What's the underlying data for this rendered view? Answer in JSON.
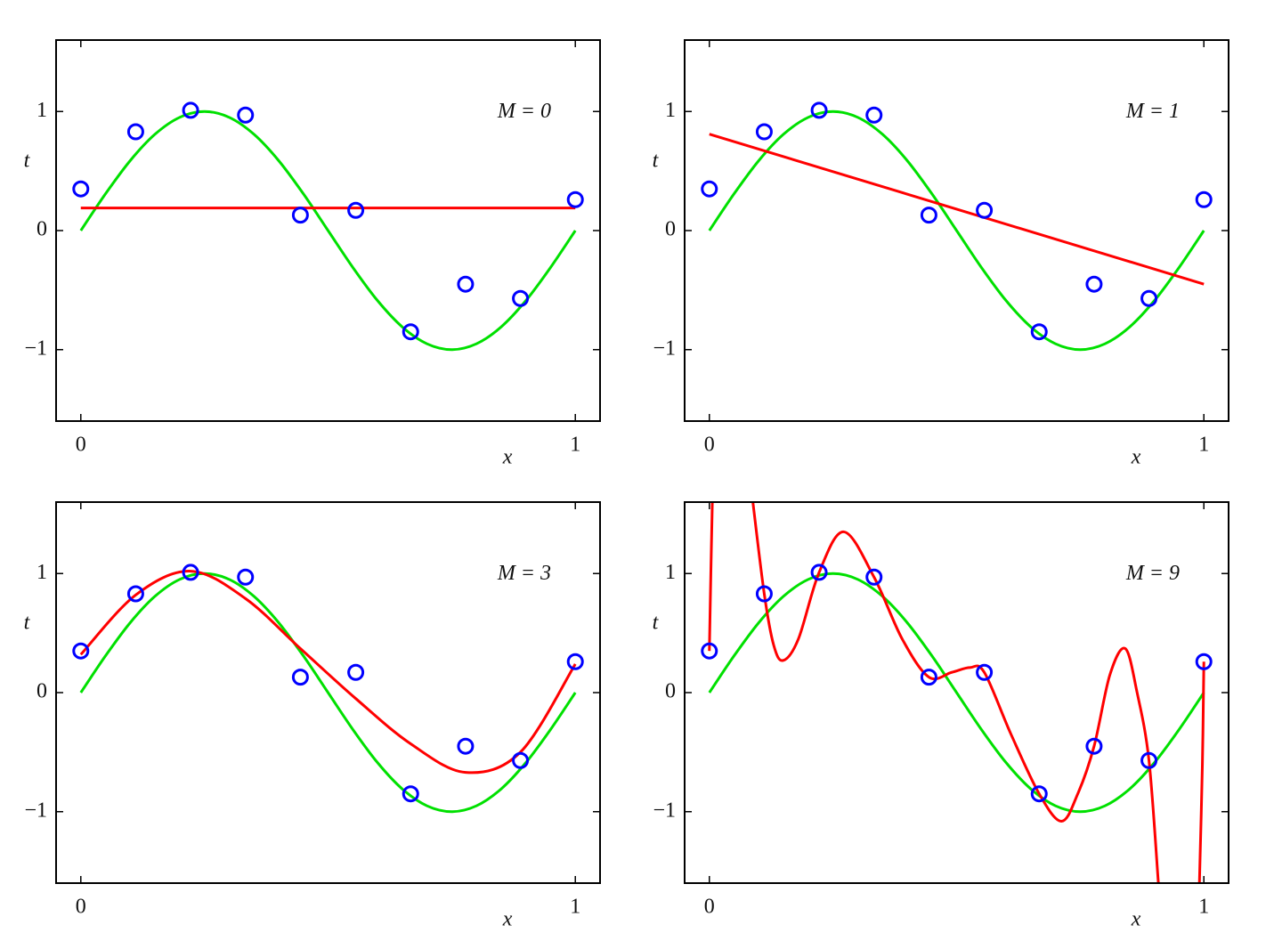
{
  "chart_data": [
    {
      "type": "line",
      "annotation": "M = 0",
      "xlabel": "x",
      "ylabel": "t",
      "xlim": [
        -0.05,
        1.05
      ],
      "ylim": [
        -1.6,
        1.6
      ],
      "xticks": [
        0,
        1
      ],
      "yticks": [
        {
          "value": -1,
          "label": "−1"
        },
        0,
        1
      ],
      "series": [
        {
          "color": "#00e000",
          "x": [
            0,
            0.05,
            0.1,
            0.15,
            0.2,
            0.25,
            0.3,
            0.35,
            0.4,
            0.45,
            0.5,
            0.55,
            0.6,
            0.65,
            0.7,
            0.75,
            0.8,
            0.85,
            0.9,
            0.95,
            1
          ],
          "values": [
            0,
            0.309,
            0.588,
            0.809,
            0.951,
            1,
            0.951,
            0.809,
            0.588,
            0.309,
            0,
            -0.309,
            -0.588,
            -0.809,
            -0.951,
            -1,
            -0.951,
            -0.809,
            -0.588,
            -0.309,
            0
          ]
        },
        {
          "color": "#ff0000",
          "x": [
            0,
            1
          ],
          "values": [
            0.19,
            0.19
          ]
        },
        {
          "color": "#0000ff",
          "marker": "circle",
          "x": [
            0,
            0.111,
            0.222,
            0.333,
            0.444,
            0.556,
            0.667,
            0.778,
            0.889,
            1
          ],
          "values": [
            0.35,
            0.83,
            1.01,
            0.97,
            0.13,
            0.17,
            -0.85,
            -0.45,
            -0.57,
            0.26
          ]
        }
      ]
    },
    {
      "type": "line",
      "annotation": "M = 1",
      "xlabel": "x",
      "ylabel": "t",
      "xlim": [
        -0.05,
        1.05
      ],
      "ylim": [
        -1.6,
        1.6
      ],
      "xticks": [
        0,
        1
      ],
      "yticks": [
        {
          "value": -1,
          "label": "−1"
        },
        0,
        1
      ],
      "series": [
        {
          "color": "#00e000",
          "x": [
            0,
            0.05,
            0.1,
            0.15,
            0.2,
            0.25,
            0.3,
            0.35,
            0.4,
            0.45,
            0.5,
            0.55,
            0.6,
            0.65,
            0.7,
            0.75,
            0.8,
            0.85,
            0.9,
            0.95,
            1
          ],
          "values": [
            0,
            0.309,
            0.588,
            0.809,
            0.951,
            1,
            0.951,
            0.809,
            0.588,
            0.309,
            0,
            -0.309,
            -0.588,
            -0.809,
            -0.951,
            -1,
            -0.951,
            -0.809,
            -0.588,
            -0.309,
            0
          ]
        },
        {
          "color": "#ff0000",
          "x": [
            0,
            1
          ],
          "values": [
            0.81,
            -0.45
          ]
        },
        {
          "color": "#0000ff",
          "marker": "circle",
          "x": [
            0,
            0.111,
            0.222,
            0.333,
            0.444,
            0.556,
            0.667,
            0.778,
            0.889,
            1
          ],
          "values": [
            0.35,
            0.83,
            1.01,
            0.97,
            0.13,
            0.17,
            -0.85,
            -0.45,
            -0.57,
            0.26
          ]
        }
      ]
    },
    {
      "type": "line",
      "annotation": "M = 3",
      "xlabel": "x",
      "ylabel": "t",
      "xlim": [
        -0.05,
        1.05
      ],
      "ylim": [
        -1.6,
        1.6
      ],
      "xticks": [
        0,
        1
      ],
      "yticks": [
        {
          "value": -1,
          "label": "−1"
        },
        0,
        1
      ],
      "series": [
        {
          "color": "#00e000",
          "x": [
            0,
            0.05,
            0.1,
            0.15,
            0.2,
            0.25,
            0.3,
            0.35,
            0.4,
            0.45,
            0.5,
            0.55,
            0.6,
            0.65,
            0.7,
            0.75,
            0.8,
            0.85,
            0.9,
            0.95,
            1
          ],
          "values": [
            0,
            0.309,
            0.588,
            0.809,
            0.951,
            1,
            0.951,
            0.809,
            0.588,
            0.309,
            0,
            -0.309,
            -0.588,
            -0.809,
            -0.951,
            -1,
            -0.951,
            -0.809,
            -0.588,
            -0.309,
            0
          ]
        },
        {
          "color": "#ff0000",
          "x": [
            0,
            0.111,
            0.222,
            0.333,
            0.444,
            0.556,
            0.667,
            0.778,
            0.889,
            1
          ],
          "values": [
            0.32,
            0.82,
            1.02,
            0.79,
            0.37,
            -0.05,
            -0.43,
            -0.67,
            -0.5,
            0.24
          ]
        },
        {
          "color": "#0000ff",
          "marker": "circle",
          "x": [
            0,
            0.111,
            0.222,
            0.333,
            0.444,
            0.556,
            0.667,
            0.778,
            0.889,
            1
          ],
          "values": [
            0.35,
            0.83,
            1.01,
            0.97,
            0.13,
            0.17,
            -0.85,
            -0.45,
            -0.57,
            0.26
          ]
        }
      ]
    },
    {
      "type": "line",
      "annotation": "M = 9",
      "xlabel": "x",
      "ylabel": "t",
      "xlim": [
        -0.05,
        1.05
      ],
      "ylim": [
        -1.6,
        1.6
      ],
      "xticks": [
        0,
        1
      ],
      "yticks": [
        {
          "value": -1,
          "label": "−1"
        },
        0,
        1
      ],
      "series": [
        {
          "color": "#00e000",
          "x": [
            0,
            0.05,
            0.1,
            0.15,
            0.2,
            0.25,
            0.3,
            0.35,
            0.4,
            0.45,
            0.5,
            0.55,
            0.6,
            0.65,
            0.7,
            0.75,
            0.8,
            0.85,
            0.9,
            0.95,
            1
          ],
          "values": [
            0,
            0.309,
            0.588,
            0.809,
            0.951,
            1,
            0.951,
            0.809,
            0.588,
            0.309,
            0,
            -0.309,
            -0.588,
            -0.809,
            -0.951,
            -1,
            -0.951,
            -0.809,
            -0.588,
            -0.309,
            0
          ]
        },
        {
          "color": "#ff0000",
          "x": [
            0,
            0.003,
            0.006,
            0.05,
            0.088,
            0.111,
            0.13,
            0.149,
            0.18,
            0.222,
            0.272,
            0.333,
            0.39,
            0.444,
            0.49,
            0.527,
            0.556,
            0.61,
            0.667,
            0.712,
            0.745,
            0.778,
            0.81,
            0.841,
            0.865,
            0.889,
            0.908,
            0.95,
            0.991,
            0.997,
            1
          ],
          "values": [
            0.35,
            1.0,
            1.6,
            null,
            1.6,
            0.83,
            0.4,
            0.27,
            0.45,
            1.01,
            1.35,
            0.97,
            0.45,
            0.13,
            0.17,
            0.21,
            0.17,
            -0.35,
            -0.85,
            -1.08,
            -0.85,
            -0.45,
            0.15,
            0.37,
            0.0,
            -0.57,
            -1.6,
            null,
            -1.6,
            -0.6,
            0.26
          ]
        },
        {
          "color": "#0000ff",
          "marker": "circle",
          "x": [
            0,
            0.111,
            0.222,
            0.333,
            0.444,
            0.556,
            0.667,
            0.778,
            0.889,
            1
          ],
          "values": [
            0.35,
            0.83,
            1.01,
            0.97,
            0.13,
            0.17,
            -0.85,
            -0.45,
            -0.57,
            0.26
          ]
        }
      ]
    }
  ]
}
